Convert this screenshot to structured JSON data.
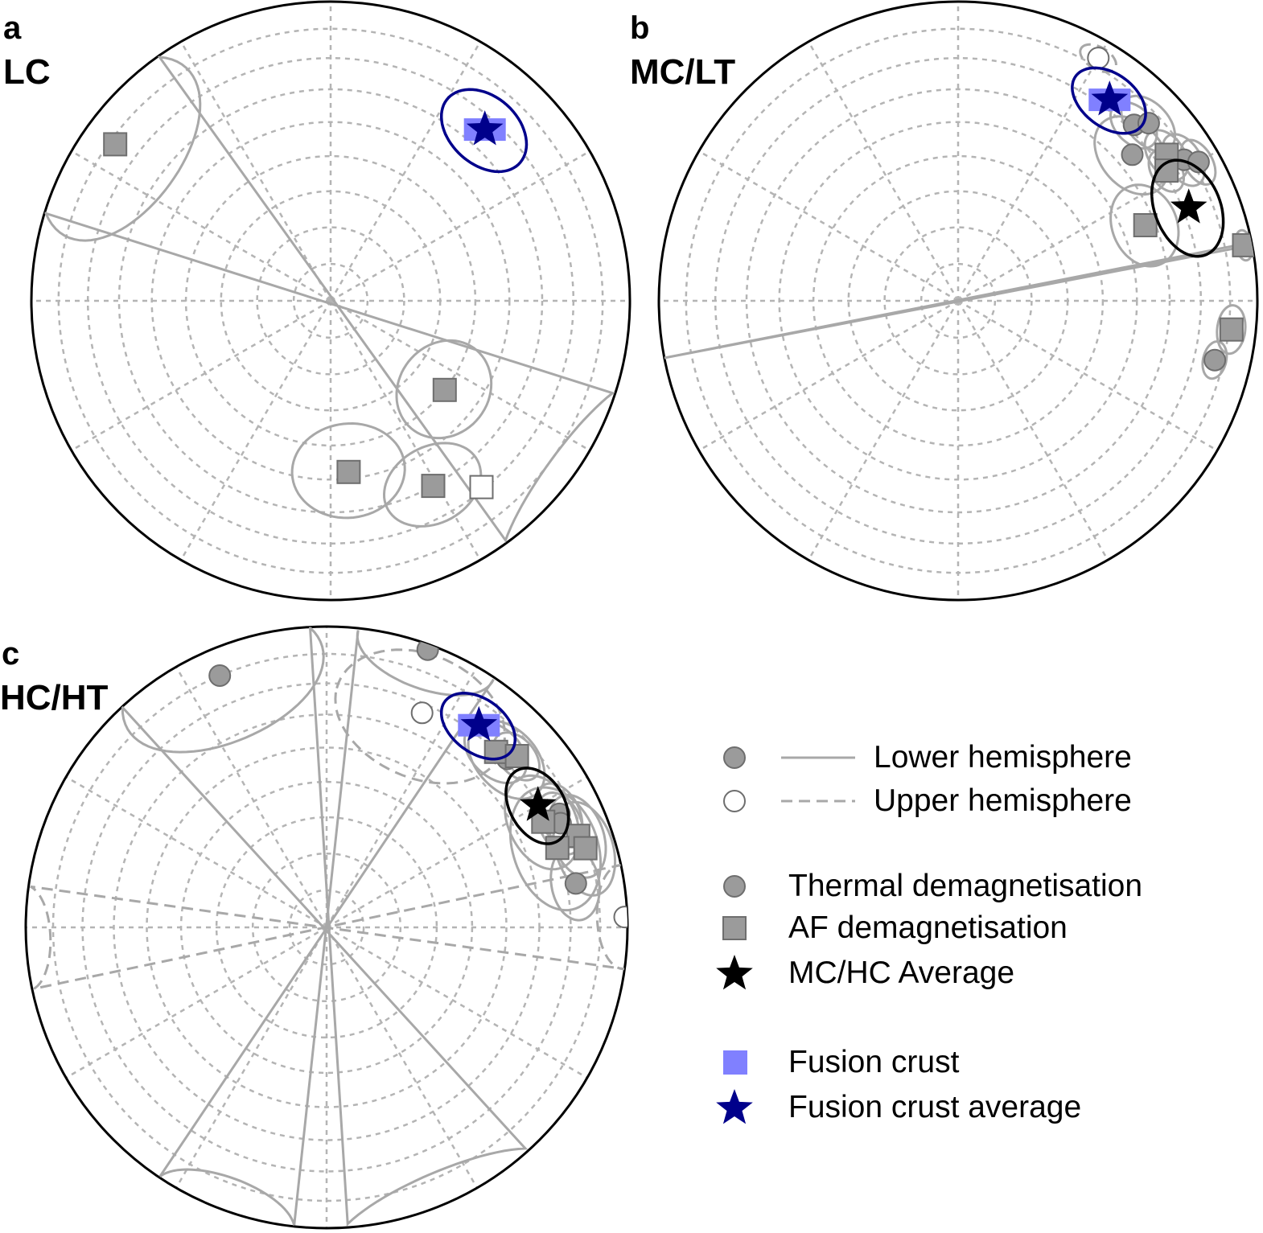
{
  "chart_data": {
    "type": "scatter",
    "projection": "equal-area stereonet",
    "grid": true,
    "legend_position": "right",
    "styles": {
      "lower_color": "#9b9b9b",
      "upper_color": "#ffffff",
      "marker_edge": "#6e6e6e",
      "ellipse_color": "#a8a8a8",
      "grid_color": "#b4b4b4",
      "fusion_crust_color": "#8080ff",
      "fusion_average_color": "#00008b",
      "average_color": "#000000"
    },
    "panels": [
      {
        "id": "a",
        "letter": "a",
        "title": "LC",
        "points": [
          {
            "dec": 306,
            "inc": 12,
            "hemisphere": "lower",
            "method": "AF",
            "a95": 22
          },
          {
            "dec": 128,
            "inc": 50,
            "hemisphere": "lower",
            "method": "AF",
            "a95": 13
          },
          {
            "dec": 174,
            "inc": 42,
            "hemisphere": "lower",
            "method": "AF",
            "a95": 14
          },
          {
            "dec": 151,
            "inc": 30,
            "hemisphere": "lower",
            "method": "AF",
            "a95": 12
          },
          {
            "dec": 141,
            "inc": 21,
            "hemisphere": "upper",
            "method": "AF",
            "a95": 1
          }
        ],
        "fusion_crust": [
          {
            "dec": 42,
            "inc": 24
          }
        ],
        "fusion_crust_average": {
          "dec": 42,
          "inc": 24,
          "a95": 11
        }
      },
      {
        "id": "b",
        "letter": "b",
        "title": "MC/LT",
        "points": [
          {
            "dec": 30,
            "inc": 7,
            "hemisphere": "upper",
            "method": "thermal",
            "a95": 4
          },
          {
            "dec": 45,
            "inc": 18,
            "hemisphere": "lower",
            "method": "thermal",
            "a95": 6
          },
          {
            "dec": 47,
            "inc": 14,
            "hemisphere": "lower",
            "method": "thermal",
            "a95": 7
          },
          {
            "dec": 50,
            "inc": 25,
            "hemisphere": "lower",
            "method": "thermal",
            "a95": 10
          },
          {
            "dec": 58,
            "inc": 12,
            "hemisphere": "lower",
            "method": "thermal",
            "a95": 6
          },
          {
            "dec": 60,
            "inc": 8,
            "hemisphere": "lower",
            "method": "thermal",
            "a95": 5
          },
          {
            "dec": 103,
            "inc": 13,
            "hemisphere": "lower",
            "method": "thermal",
            "a95": 4
          },
          {
            "dec": 55,
            "inc": 16,
            "hemisphere": "lower",
            "method": "AF",
            "a95": 6
          },
          {
            "dec": 58,
            "inc": 19,
            "hemisphere": "lower",
            "method": "AF",
            "a95": 5
          },
          {
            "dec": 68,
            "inc": 33,
            "hemisphere": "lower",
            "method": "AF",
            "a95": 10
          },
          {
            "dec": 79,
            "inc": 3,
            "hemisphere": "lower",
            "method": "AF",
            "a95": 3
          },
          {
            "dec": 96,
            "inc": 9,
            "hemisphere": "lower",
            "method": "AF",
            "a95": 5
          }
        ],
        "fusion_crust": [
          {
            "dec": 37,
            "inc": 17
          }
        ],
        "fusion_crust_average": {
          "dec": 37,
          "inc": 17,
          "a95": 9
        },
        "mc_hc_average": {
          "dec": 68,
          "inc": 18,
          "a95": 11
        }
      },
      {
        "id": "c",
        "letter": "c",
        "title": "HC/HT",
        "points": [
          {
            "dec": 337,
            "inc": 10,
            "hemisphere": "lower",
            "method": "thermal",
            "a95": 22
          },
          {
            "dec": 20,
            "inc": 2,
            "hemisphere": "lower",
            "method": "thermal",
            "a95": 14
          },
          {
            "dec": 47,
            "inc": 19,
            "hemisphere": "lower",
            "method": "thermal",
            "a95": 10
          },
          {
            "dec": 64,
            "inc": 15,
            "hemisphere": "lower",
            "method": "thermal",
            "a95": 7
          },
          {
            "dec": 66,
            "inc": 16,
            "hemisphere": "lower",
            "method": "thermal",
            "a95": 7
          },
          {
            "dec": 80,
            "inc": 17,
            "hemisphere": "lower",
            "method": "thermal",
            "a95": 8
          },
          {
            "dec": 24,
            "inc": 23,
            "hemisphere": "upper",
            "method": "thermal",
            "a95": 20
          },
          {
            "dec": 88,
            "inc": 1,
            "hemisphere": "upper",
            "method": "thermal",
            "a95": 10
          },
          {
            "dec": 44,
            "inc": 20,
            "hemisphere": "lower",
            "method": "AF",
            "a95": 8
          },
          {
            "dec": 48,
            "inc": 16,
            "hemisphere": "lower",
            "method": "AF",
            "a95": 6
          },
          {
            "dec": 64,
            "inc": 21,
            "hemisphere": "lower",
            "method": "AF",
            "a95": 11
          },
          {
            "dec": 70,
            "inc": 12,
            "hemisphere": "lower",
            "method": "AF",
            "a95": 9
          },
          {
            "dec": 71,
            "inc": 20,
            "hemisphere": "lower",
            "method": "AF",
            "a95": 14
          },
          {
            "dec": 73,
            "inc": 11,
            "hemisphere": "lower",
            "method": "AF",
            "a95": 10
          }
        ],
        "fusion_crust": [
          {
            "dec": 37,
            "inc": 17
          }
        ],
        "fusion_crust_average": {
          "dec": 37,
          "inc": 17,
          "a95": 9
        },
        "mc_hc_average": {
          "dec": 60,
          "inc": 20,
          "a95": 9
        }
      }
    ],
    "legend": [
      {
        "label": "Lower hemisphere",
        "marker": "circle-filled",
        "line": "solid"
      },
      {
        "label": "Upper hemisphere",
        "marker": "circle-open",
        "line": "dashed"
      },
      {
        "label": "Thermal demagnetisation",
        "marker": "circle-filled"
      },
      {
        "label": "AF demagnetisation",
        "marker": "square-filled"
      },
      {
        "label": "MC/HC Average",
        "marker": "star-black"
      },
      {
        "label": "Fusion crust",
        "marker": "square-blue"
      },
      {
        "label": "Fusion crust average",
        "marker": "star-navy"
      }
    ]
  }
}
